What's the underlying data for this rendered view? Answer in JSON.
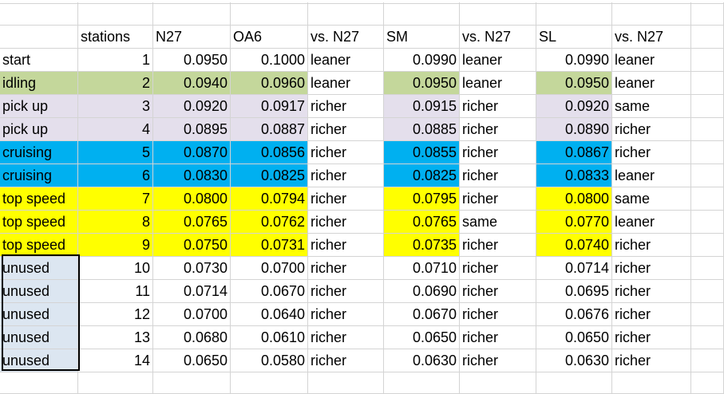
{
  "headers": [
    "",
    "stations",
    "N27",
    "OA6",
    "vs. N27",
    "SM",
    "vs. N27",
    "SL",
    "vs. N27"
  ],
  "rows": [
    {
      "label": "start",
      "station": "1",
      "n27": "0.0950",
      "oa6": "0.1000",
      "vs1": "leaner",
      "sm": "0.0990",
      "vs2": "leaner",
      "sl": "0.0990",
      "vs3": "leaner",
      "band": "none"
    },
    {
      "label": "idling",
      "station": "2",
      "n27": "0.0940",
      "oa6": "0.0960",
      "vs1": "leaner",
      "sm": "0.0950",
      "vs2": "leaner",
      "sl": "0.0950",
      "vs3": "leaner",
      "band": "green"
    },
    {
      "label": "pick up",
      "station": "3",
      "n27": "0.0920",
      "oa6": "0.0917",
      "vs1": "richer",
      "sm": "0.0915",
      "vs2": "richer",
      "sl": "0.0920",
      "vs3": "same",
      "band": "lav"
    },
    {
      "label": "pick up",
      "station": "4",
      "n27": "0.0895",
      "oa6": "0.0887",
      "vs1": "richer",
      "sm": "0.0885",
      "vs2": "richer",
      "sl": "0.0890",
      "vs3": "richer",
      "band": "lav"
    },
    {
      "label": "cruising",
      "station": "5",
      "n27": "0.0870",
      "oa6": "0.0856",
      "vs1": "richer",
      "sm": "0.0855",
      "vs2": "richer",
      "sl": "0.0867",
      "vs3": "richer",
      "band": "blue"
    },
    {
      "label": "cruising",
      "station": "6",
      "n27": "0.0830",
      "oa6": "0.0825",
      "vs1": "richer",
      "sm": "0.0825",
      "vs2": "richer",
      "sl": "0.0833",
      "vs3": "leaner",
      "band": "blue"
    },
    {
      "label": "top speed",
      "station": "7",
      "n27": "0.0800",
      "oa6": "0.0794",
      "vs1": "richer",
      "sm": "0.0795",
      "vs2": "richer",
      "sl": "0.0800",
      "vs3": "same",
      "band": "yellow"
    },
    {
      "label": "top speed",
      "station": "8",
      "n27": "0.0765",
      "oa6": "0.0762",
      "vs1": "richer",
      "sm": "0.0765",
      "vs2": "same",
      "sl": "0.0770",
      "vs3": "leaner",
      "band": "yellow"
    },
    {
      "label": "top speed",
      "station": "9",
      "n27": "0.0750",
      "oa6": "0.0731",
      "vs1": "richer",
      "sm": "0.0735",
      "vs2": "richer",
      "sl": "0.0740",
      "vs3": "richer",
      "band": "yellow"
    },
    {
      "label": "unused",
      "station": "10",
      "n27": "0.0730",
      "oa6": "0.0700",
      "vs1": "richer",
      "sm": "0.0710",
      "vs2": "richer",
      "sl": "0.0714",
      "vs3": "richer",
      "band": "unused"
    },
    {
      "label": "unused",
      "station": "11",
      "n27": "0.0714",
      "oa6": "0.0670",
      "vs1": "richer",
      "sm": "0.0690",
      "vs2": "richer",
      "sl": "0.0695",
      "vs3": "richer",
      "band": "unused"
    },
    {
      "label": "unused",
      "station": "12",
      "n27": "0.0700",
      "oa6": "0.0640",
      "vs1": "richer",
      "sm": "0.0670",
      "vs2": "richer",
      "sl": "0.0676",
      "vs3": "richer",
      "band": "unused"
    },
    {
      "label": "unused",
      "station": "13",
      "n27": "0.0680",
      "oa6": "0.0610",
      "vs1": "richer",
      "sm": "0.0650",
      "vs2": "richer",
      "sl": "0.0650",
      "vs3": "richer",
      "band": "unused"
    },
    {
      "label": "unused",
      "station": "14",
      "n27": "0.0650",
      "oa6": "0.0580",
      "vs1": "richer",
      "sm": "0.0630",
      "vs2": "richer",
      "sl": "0.0630",
      "vs3": "richer",
      "band": "unused"
    }
  ],
  "colors": {
    "green": "#c4d79b",
    "lav": "#e4dfec",
    "blue": "#00b0f0",
    "yellow": "#ffff00",
    "unused": "#dce6f1"
  }
}
